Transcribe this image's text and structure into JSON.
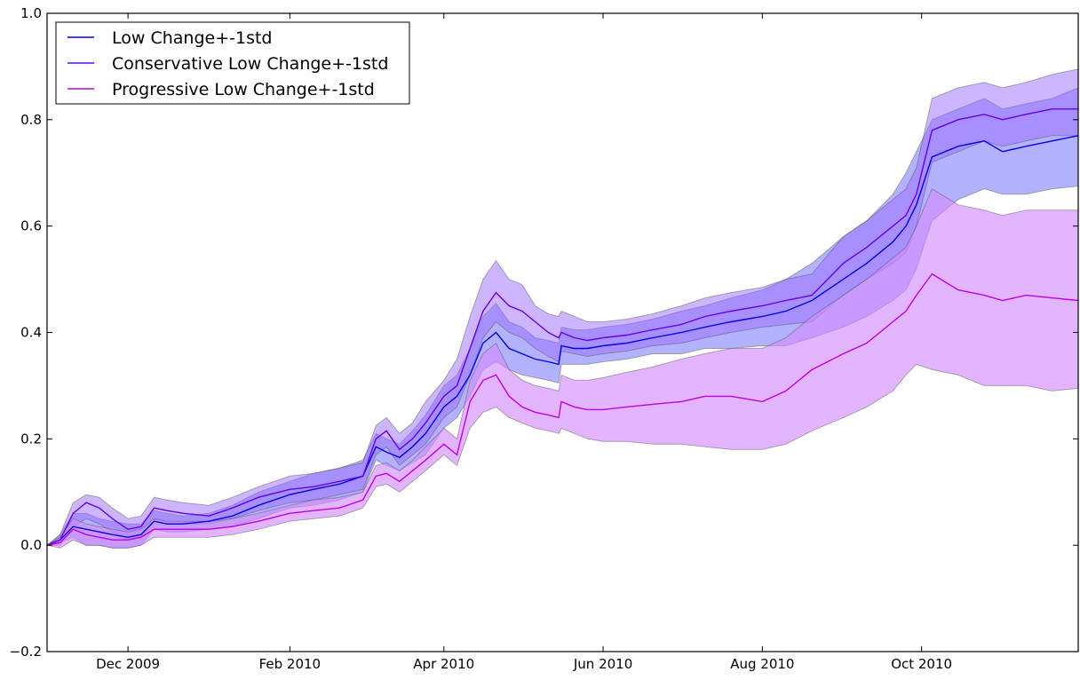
{
  "chart_data": {
    "type": "line",
    "title": "",
    "xlabel": "",
    "ylabel": "",
    "x_start": "2009-10-31",
    "x_end": "2010-11-30",
    "ylim": [
      -0.2,
      1.0
    ],
    "grid": false,
    "legend_position": "top-left",
    "x_tick_labels": [
      {
        "date": "2009-12-01",
        "label": "Dec 2009"
      },
      {
        "date": "2010-02-01",
        "label": "Feb 2010"
      },
      {
        "date": "2010-04-01",
        "label": "Apr 2010"
      },
      {
        "date": "2010-06-01",
        "label": "Jun 2010"
      },
      {
        "date": "2010-08-01",
        "label": "Aug 2010"
      },
      {
        "date": "2010-10-01",
        "label": "Oct 2010"
      }
    ],
    "y_ticks": [
      {
        "value": -0.2,
        "label": "−0.2"
      },
      {
        "value": 0.0,
        "label": "0.0"
      },
      {
        "value": 0.2,
        "label": "0.2"
      },
      {
        "value": 0.4,
        "label": "0.4"
      },
      {
        "value": 0.6,
        "label": "0.6"
      },
      {
        "value": 0.8,
        "label": "0.8"
      },
      {
        "value": 1.0,
        "label": "1.0"
      }
    ],
    "series": [
      {
        "name": "Low Change+-1std",
        "color": "#0000ee",
        "band_color": "#7373ff",
        "band_opacity": 0.55,
        "x": [
          "2009-10-31",
          "2009-11-05",
          "2009-11-10",
          "2009-11-15",
          "2009-11-20",
          "2009-11-25",
          "2009-12-01",
          "2009-12-06",
          "2009-12-11",
          "2009-12-16",
          "2009-12-22",
          "2010-01-01",
          "2010-01-10",
          "2010-01-20",
          "2010-02-01",
          "2010-02-10",
          "2010-02-20",
          "2010-03-01",
          "2010-03-06",
          "2010-03-10",
          "2010-03-15",
          "2010-03-20",
          "2010-03-25",
          "2010-04-01",
          "2010-04-06",
          "2010-04-11",
          "2010-04-16",
          "2010-04-21",
          "2010-04-26",
          "2010-05-01",
          "2010-05-06",
          "2010-05-11",
          "2010-05-15",
          "2010-05-16",
          "2010-05-21",
          "2010-05-26",
          "2010-06-01",
          "2010-06-10",
          "2010-06-20",
          "2010-07-01",
          "2010-07-10",
          "2010-07-20",
          "2010-08-01",
          "2010-08-10",
          "2010-08-20",
          "2010-09-01",
          "2010-09-10",
          "2010-09-20",
          "2010-09-25",
          "2010-09-29",
          "2010-10-05",
          "2010-10-15",
          "2010-10-25",
          "2010-11-01",
          "2010-11-10",
          "2010-11-20",
          "2010-11-30"
        ],
        "y": [
          0.0,
          0.01,
          0.035,
          0.03,
          0.025,
          0.02,
          0.015,
          0.02,
          0.045,
          0.04,
          0.04,
          0.045,
          0.055,
          0.075,
          0.095,
          0.105,
          0.115,
          0.13,
          0.185,
          0.175,
          0.165,
          0.185,
          0.21,
          0.26,
          0.28,
          0.32,
          0.38,
          0.4,
          0.37,
          0.36,
          0.35,
          0.345,
          0.34,
          0.375,
          0.37,
          0.37,
          0.375,
          0.38,
          0.39,
          0.4,
          0.41,
          0.42,
          0.43,
          0.44,
          0.46,
          0.5,
          0.53,
          0.57,
          0.6,
          0.64,
          0.73,
          0.75,
          0.76,
          0.74,
          0.75,
          0.76,
          0.77
        ],
        "lower": [
          0.0,
          0.005,
          0.015,
          0.0,
          0.0,
          -0.005,
          -0.005,
          0.0,
          0.03,
          0.025,
          0.025,
          0.03,
          0.035,
          0.05,
          0.07,
          0.075,
          0.085,
          0.1,
          0.16,
          0.15,
          0.14,
          0.155,
          0.17,
          0.22,
          0.24,
          0.28,
          0.33,
          0.345,
          0.33,
          0.32,
          0.315,
          0.31,
          0.305,
          0.34,
          0.34,
          0.34,
          0.345,
          0.35,
          0.36,
          0.36,
          0.37,
          0.37,
          0.375,
          0.375,
          0.39,
          0.41,
          0.43,
          0.46,
          0.48,
          0.52,
          0.61,
          0.65,
          0.67,
          0.66,
          0.66,
          0.67,
          0.675
        ],
        "upper": [
          0.0,
          0.02,
          0.06,
          0.06,
          0.05,
          0.045,
          0.04,
          0.04,
          0.065,
          0.06,
          0.055,
          0.06,
          0.075,
          0.1,
          0.12,
          0.135,
          0.145,
          0.16,
          0.21,
          0.2,
          0.19,
          0.215,
          0.245,
          0.3,
          0.32,
          0.37,
          0.43,
          0.455,
          0.42,
          0.41,
          0.39,
          0.385,
          0.38,
          0.41,
          0.405,
          0.405,
          0.41,
          0.415,
          0.425,
          0.44,
          0.45,
          0.465,
          0.48,
          0.5,
          0.53,
          0.58,
          0.61,
          0.66,
          0.7,
          0.74,
          0.8,
          0.82,
          0.84,
          0.82,
          0.83,
          0.84,
          0.86
        ]
      },
      {
        "name": "Conservative Low Change+-1std",
        "color": "#6600ee",
        "band_color": "#9b6bff",
        "band_opacity": 0.5,
        "x": [
          "2009-10-31",
          "2009-11-05",
          "2009-11-10",
          "2009-11-15",
          "2009-11-20",
          "2009-11-25",
          "2009-12-01",
          "2009-12-06",
          "2009-12-11",
          "2009-12-16",
          "2009-12-22",
          "2010-01-01",
          "2010-01-10",
          "2010-01-20",
          "2010-02-01",
          "2010-02-10",
          "2010-02-20",
          "2010-03-01",
          "2010-03-06",
          "2010-03-10",
          "2010-03-15",
          "2010-03-20",
          "2010-03-25",
          "2010-04-01",
          "2010-04-06",
          "2010-04-11",
          "2010-04-16",
          "2010-04-21",
          "2010-04-26",
          "2010-05-01",
          "2010-05-06",
          "2010-05-11",
          "2010-05-15",
          "2010-05-16",
          "2010-05-21",
          "2010-05-26",
          "2010-06-01",
          "2010-06-10",
          "2010-06-20",
          "2010-07-01",
          "2010-07-10",
          "2010-07-20",
          "2010-08-01",
          "2010-08-10",
          "2010-08-20",
          "2010-09-01",
          "2010-09-10",
          "2010-09-20",
          "2010-09-25",
          "2010-09-29",
          "2010-10-05",
          "2010-10-15",
          "2010-10-25",
          "2010-11-01",
          "2010-11-10",
          "2010-11-20",
          "2010-11-30"
        ],
        "y": [
          0.0,
          0.01,
          0.06,
          0.08,
          0.07,
          0.05,
          0.03,
          0.035,
          0.07,
          0.065,
          0.06,
          0.055,
          0.07,
          0.09,
          0.105,
          0.11,
          0.12,
          0.13,
          0.2,
          0.215,
          0.18,
          0.2,
          0.23,
          0.28,
          0.3,
          0.37,
          0.44,
          0.475,
          0.45,
          0.44,
          0.42,
          0.4,
          0.39,
          0.4,
          0.39,
          0.385,
          0.39,
          0.395,
          0.405,
          0.415,
          0.43,
          0.44,
          0.45,
          0.46,
          0.47,
          0.53,
          0.56,
          0.6,
          0.62,
          0.66,
          0.78,
          0.8,
          0.81,
          0.8,
          0.81,
          0.82,
          0.82
        ],
        "lower": [
          0.0,
          0.0,
          0.035,
          0.05,
          0.04,
          0.025,
          0.01,
          0.015,
          0.045,
          0.04,
          0.04,
          0.04,
          0.05,
          0.065,
          0.08,
          0.085,
          0.095,
          0.105,
          0.17,
          0.185,
          0.15,
          0.17,
          0.19,
          0.24,
          0.26,
          0.32,
          0.39,
          0.42,
          0.4,
          0.39,
          0.37,
          0.355,
          0.345,
          0.365,
          0.36,
          0.355,
          0.36,
          0.365,
          0.375,
          0.38,
          0.39,
          0.4,
          0.41,
          0.415,
          0.42,
          0.47,
          0.5,
          0.53,
          0.55,
          0.6,
          0.72,
          0.74,
          0.76,
          0.75,
          0.76,
          0.77,
          0.77
        ],
        "upper": [
          0.0,
          0.02,
          0.08,
          0.095,
          0.09,
          0.07,
          0.05,
          0.055,
          0.09,
          0.085,
          0.08,
          0.075,
          0.09,
          0.11,
          0.13,
          0.135,
          0.145,
          0.155,
          0.225,
          0.24,
          0.21,
          0.23,
          0.27,
          0.31,
          0.35,
          0.43,
          0.5,
          0.535,
          0.5,
          0.49,
          0.45,
          0.435,
          0.43,
          0.44,
          0.43,
          0.42,
          0.42,
          0.425,
          0.435,
          0.45,
          0.465,
          0.475,
          0.485,
          0.5,
          0.51,
          0.58,
          0.61,
          0.65,
          0.67,
          0.71,
          0.84,
          0.86,
          0.87,
          0.86,
          0.87,
          0.885,
          0.895
        ]
      },
      {
        "name": "Progressive Low Change+-1std",
        "color": "#bb00ee",
        "band_color": "#d48cff",
        "band_opacity": 0.65,
        "x": [
          "2009-10-31",
          "2009-11-05",
          "2009-11-10",
          "2009-11-15",
          "2009-11-20",
          "2009-11-25",
          "2009-12-01",
          "2009-12-06",
          "2009-12-11",
          "2009-12-16",
          "2009-12-22",
          "2010-01-01",
          "2010-01-10",
          "2010-01-20",
          "2010-02-01",
          "2010-02-10",
          "2010-02-20",
          "2010-03-01",
          "2010-03-06",
          "2010-03-10",
          "2010-03-15",
          "2010-03-20",
          "2010-03-25",
          "2010-04-01",
          "2010-04-06",
          "2010-04-11",
          "2010-04-16",
          "2010-04-21",
          "2010-04-26",
          "2010-05-01",
          "2010-05-06",
          "2010-05-11",
          "2010-05-15",
          "2010-05-16",
          "2010-05-21",
          "2010-05-26",
          "2010-06-01",
          "2010-06-10",
          "2010-06-20",
          "2010-07-01",
          "2010-07-10",
          "2010-07-20",
          "2010-08-01",
          "2010-08-10",
          "2010-08-20",
          "2010-09-01",
          "2010-09-10",
          "2010-09-20",
          "2010-09-25",
          "2010-09-29",
          "2010-10-05",
          "2010-10-15",
          "2010-10-25",
          "2010-11-01",
          "2010-11-10",
          "2010-11-20",
          "2010-11-30"
        ],
        "y": [
          0.0,
          0.005,
          0.03,
          0.02,
          0.015,
          0.01,
          0.01,
          0.015,
          0.03,
          0.03,
          0.03,
          0.03,
          0.035,
          0.045,
          0.06,
          0.065,
          0.07,
          0.085,
          0.13,
          0.135,
          0.12,
          0.14,
          0.16,
          0.19,
          0.17,
          0.27,
          0.31,
          0.32,
          0.28,
          0.26,
          0.25,
          0.245,
          0.24,
          0.27,
          0.26,
          0.255,
          0.255,
          0.26,
          0.265,
          0.27,
          0.28,
          0.28,
          0.27,
          0.29,
          0.33,
          0.36,
          0.38,
          0.42,
          0.44,
          0.47,
          0.51,
          0.48,
          0.47,
          0.46,
          0.47,
          0.465,
          0.46
        ],
        "lower": [
          0.0,
          -0.005,
          0.01,
          0.0,
          0.0,
          -0.005,
          -0.005,
          0.0,
          0.015,
          0.015,
          0.015,
          0.015,
          0.02,
          0.03,
          0.045,
          0.05,
          0.055,
          0.07,
          0.11,
          0.115,
          0.1,
          0.12,
          0.14,
          0.17,
          0.15,
          0.22,
          0.25,
          0.26,
          0.24,
          0.23,
          0.22,
          0.215,
          0.21,
          0.22,
          0.21,
          0.2,
          0.195,
          0.195,
          0.19,
          0.19,
          0.185,
          0.18,
          0.18,
          0.19,
          0.215,
          0.24,
          0.26,
          0.29,
          0.32,
          0.34,
          0.33,
          0.32,
          0.3,
          0.3,
          0.3,
          0.29,
          0.295
        ],
        "upper": [
          0.0,
          0.015,
          0.05,
          0.04,
          0.035,
          0.03,
          0.025,
          0.03,
          0.05,
          0.045,
          0.045,
          0.045,
          0.05,
          0.06,
          0.075,
          0.085,
          0.09,
          0.1,
          0.15,
          0.155,
          0.14,
          0.16,
          0.185,
          0.22,
          0.2,
          0.31,
          0.36,
          0.38,
          0.33,
          0.31,
          0.3,
          0.295,
          0.29,
          0.32,
          0.31,
          0.31,
          0.315,
          0.325,
          0.335,
          0.35,
          0.36,
          0.37,
          0.37,
          0.39,
          0.43,
          0.47,
          0.5,
          0.54,
          0.56,
          0.6,
          0.67,
          0.64,
          0.63,
          0.62,
          0.63,
          0.63,
          0.63
        ]
      }
    ]
  }
}
